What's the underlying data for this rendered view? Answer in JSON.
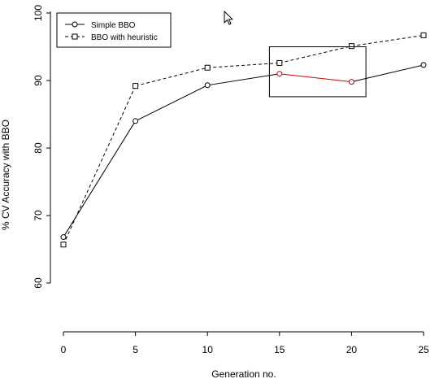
{
  "chart_data": {
    "type": "line",
    "xlabel": "Generation no.",
    "ylabel": "% CV Accuracy with BBO",
    "x": [
      0,
      5,
      10,
      15,
      20,
      25
    ],
    "xlim": [
      0,
      25
    ],
    "ylim": [
      55,
      101
    ],
    "x_ticks": [
      0,
      5,
      10,
      15,
      20,
      25
    ],
    "y_ticks": [
      60,
      70,
      80,
      90,
      100
    ],
    "grid": false,
    "legend_position": "top-left",
    "series": [
      {
        "name": "Simple BBO",
        "values": [
          66.8,
          84.0,
          89.3,
          91.0,
          89.8,
          92.3
        ],
        "marker": "circle",
        "line_style": "solid",
        "color": "#000000"
      },
      {
        "name": "BBO with heuristic",
        "values": [
          65.7,
          89.2,
          91.9,
          92.6,
          95.1,
          96.7
        ],
        "marker": "square",
        "line_style": "dashed",
        "color": "#000000"
      }
    ],
    "highlight": {
      "x_range": [
        15,
        20
      ],
      "series_index": 0,
      "color": "#cc0000"
    },
    "annotation_box": {
      "x_range": [
        14.3,
        21.0
      ],
      "y_range": [
        87.6,
        95.0
      ]
    }
  },
  "cursor": {
    "icon": "mouse-pointer-icon"
  }
}
